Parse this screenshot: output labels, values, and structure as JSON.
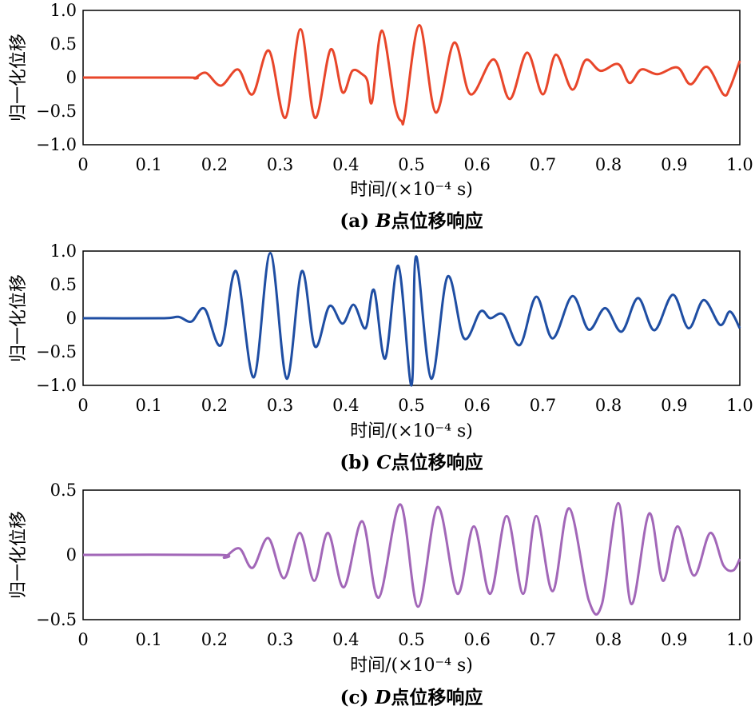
{
  "chart_data": [
    {
      "type": "line",
      "caption_prefix": "(a)",
      "caption_letter": "B",
      "caption_suffix": "点位移响应",
      "xlabel": "时间/(×10⁻⁴ s)",
      "ylabel": "归一化位移",
      "xlim": [
        0,
        1.0
      ],
      "ylim": [
        -1.0,
        1.0
      ],
      "xticks": [
        "0",
        "0.1",
        "0.2",
        "0.3",
        "0.4",
        "0.5",
        "0.6",
        "0.7",
        "0.8",
        "0.9",
        "1.0"
      ],
      "yticks": [
        "−1.0",
        "−0.5",
        "0",
        "0.5",
        "1.0"
      ],
      "color": "#e8462a",
      "series": [
        {
          "x": [
            0,
            0.16,
            0.17,
            0.187,
            0.21,
            0.236,
            0.258,
            0.283,
            0.308,
            0.331,
            0.353,
            0.377,
            0.395,
            0.41,
            0.425,
            0.433,
            0.44,
            0.455,
            0.475,
            0.485,
            0.49,
            0.512,
            0.537,
            0.565,
            0.59,
            0.625,
            0.65,
            0.676,
            0.7,
            0.72,
            0.745,
            0.765,
            0.788,
            0.815,
            0.832,
            0.85,
            0.875,
            0.905,
            0.925,
            0.95,
            0.975,
            0.985,
            1.0
          ],
          "y": [
            0,
            0,
            -0.01,
            0.07,
            -0.12,
            0.12,
            -0.25,
            0.4,
            -0.6,
            0.72,
            -0.6,
            0.42,
            -0.22,
            0.1,
            0.05,
            -0.05,
            -0.36,
            0.7,
            -0.42,
            -0.65,
            -0.55,
            0.78,
            -0.52,
            0.52,
            -0.25,
            0.27,
            -0.32,
            0.37,
            -0.25,
            0.34,
            -0.18,
            0.26,
            0.1,
            0.2,
            -0.08,
            0.12,
            0.05,
            0.15,
            -0.1,
            0.16,
            -0.25,
            -0.15,
            0.25
          ]
        }
      ]
    },
    {
      "type": "line",
      "caption_prefix": "(b)",
      "caption_letter": "C",
      "caption_suffix": "点位移响应",
      "xlabel": "时间/(×10⁻⁴ s)",
      "ylabel": "归一化位移",
      "xlim": [
        0,
        1.0
      ],
      "ylim": [
        -1.0,
        1.0
      ],
      "xticks": [
        "0",
        "0.1",
        "0.2",
        "0.3",
        "0.4",
        "0.5",
        "0.6",
        "0.7",
        "0.8",
        "0.9",
        "1.0"
      ],
      "yticks": [
        "−1.0",
        "−0.5",
        "0",
        "0.5",
        "1.0"
      ],
      "color": "#1f4ea3",
      "series": [
        {
          "x": [
            0,
            0.12,
            0.145,
            0.165,
            0.185,
            0.21,
            0.233,
            0.26,
            0.285,
            0.31,
            0.333,
            0.353,
            0.375,
            0.395,
            0.412,
            0.43,
            0.443,
            0.46,
            0.48,
            0.5,
            0.507,
            0.53,
            0.555,
            0.58,
            0.605,
            0.62,
            0.64,
            0.665,
            0.69,
            0.715,
            0.745,
            0.77,
            0.795,
            0.82,
            0.845,
            0.87,
            0.898,
            0.922,
            0.945,
            0.97,
            0.985,
            1.0
          ],
          "y": [
            0,
            0,
            0.02,
            -0.05,
            0.14,
            -0.4,
            0.7,
            -0.88,
            0.97,
            -0.9,
            0.7,
            -0.42,
            0.18,
            -0.08,
            0.2,
            -0.15,
            0.42,
            -0.6,
            0.78,
            -1.0,
            0.92,
            -0.9,
            0.62,
            -0.3,
            0.1,
            0.0,
            0.05,
            -0.4,
            0.32,
            -0.3,
            0.33,
            -0.17,
            0.15,
            -0.2,
            0.3,
            -0.18,
            0.35,
            -0.15,
            0.27,
            -0.1,
            0.1,
            -0.15
          ]
        }
      ]
    },
    {
      "type": "line",
      "caption_prefix": "(c)",
      "caption_letter": "D",
      "caption_suffix": "点位移响应",
      "xlabel": "时间/(×10⁻⁴ s)",
      "ylabel": "归一化位移",
      "xlim": [
        0,
        1.0
      ],
      "ylim": [
        -0.5,
        0.5
      ],
      "xticks": [
        "0",
        "0.1",
        "0.2",
        "0.3",
        "0.4",
        "0.5",
        "0.6",
        "0.7",
        "0.8",
        "0.9",
        "1.0"
      ],
      "yticks": [
        "−0.5",
        "0",
        "0.5"
      ],
      "color": "#a267b8",
      "series": [
        {
          "x": [
            0,
            0.205,
            0.215,
            0.238,
            0.258,
            0.282,
            0.306,
            0.33,
            0.352,
            0.373,
            0.397,
            0.425,
            0.45,
            0.483,
            0.51,
            0.54,
            0.57,
            0.595,
            0.62,
            0.645,
            0.67,
            0.69,
            0.715,
            0.74,
            0.77,
            0.79,
            0.815,
            0.835,
            0.862,
            0.883,
            0.905,
            0.93,
            0.955,
            0.975,
            0.99,
            1.0
          ],
          "y": [
            0,
            0,
            -0.02,
            0.05,
            -0.1,
            0.13,
            -0.18,
            0.17,
            -0.2,
            0.17,
            -0.25,
            0.26,
            -0.33,
            0.39,
            -0.4,
            0.37,
            -0.3,
            0.22,
            -0.3,
            0.3,
            -0.3,
            0.3,
            -0.28,
            0.36,
            -0.35,
            -0.38,
            0.4,
            -0.38,
            0.32,
            -0.2,
            0.22,
            -0.16,
            0.17,
            -0.08,
            -0.12,
            -0.03
          ]
        }
      ]
    }
  ]
}
